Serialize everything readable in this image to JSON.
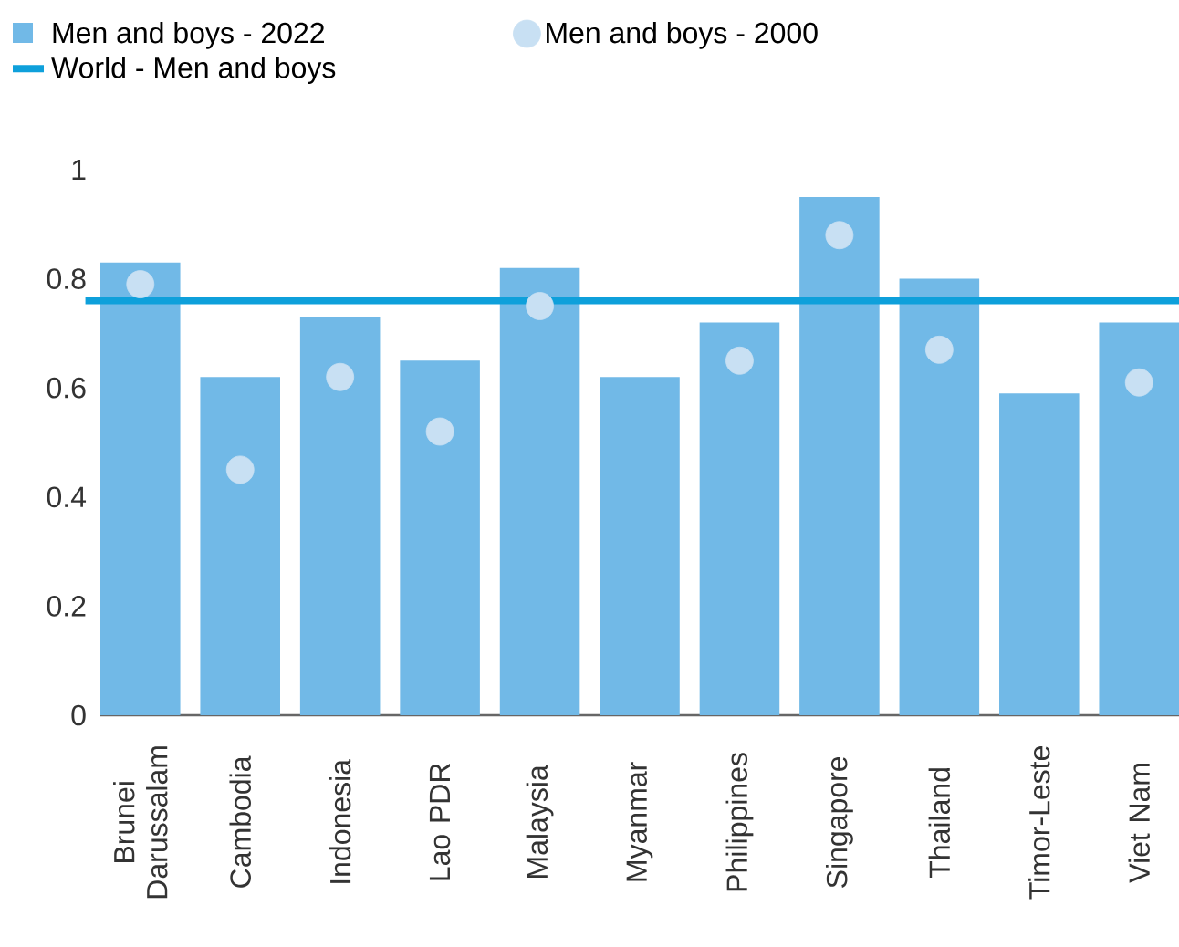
{
  "chart_data": {
    "type": "bar",
    "categories": [
      "Brunei Darussalam",
      "Cambodia",
      "Indonesia",
      "Lao PDR",
      "Malaysia",
      "Myanmar",
      "Philippines",
      "Singapore",
      "Thailand",
      "Timor-Leste",
      "Viet Nam"
    ],
    "series": [
      {
        "name": "Men and boys - 2022",
        "color": "#71b9e7",
        "values": [
          0.83,
          0.62,
          0.73,
          0.65,
          0.82,
          0.62,
          0.72,
          0.95,
          0.8,
          0.59,
          0.72
        ]
      },
      {
        "name": "Men and boys - 2000",
        "type": "scatter",
        "marker": "circle",
        "color": "#c8e0f3",
        "values": [
          0.79,
          0.45,
          0.62,
          0.52,
          0.75,
          null,
          0.65,
          0.88,
          0.67,
          null,
          0.61
        ]
      }
    ],
    "ref_lines": [
      {
        "axis": "y",
        "value": 0.76,
        "label": "World - Men and boys",
        "color": "#0ea0db"
      }
    ],
    "ylim": [
      0,
      1
    ],
    "yticks": [
      0,
      0.2,
      0.4,
      0.6,
      0.8,
      1
    ],
    "legend": "top left"
  }
}
